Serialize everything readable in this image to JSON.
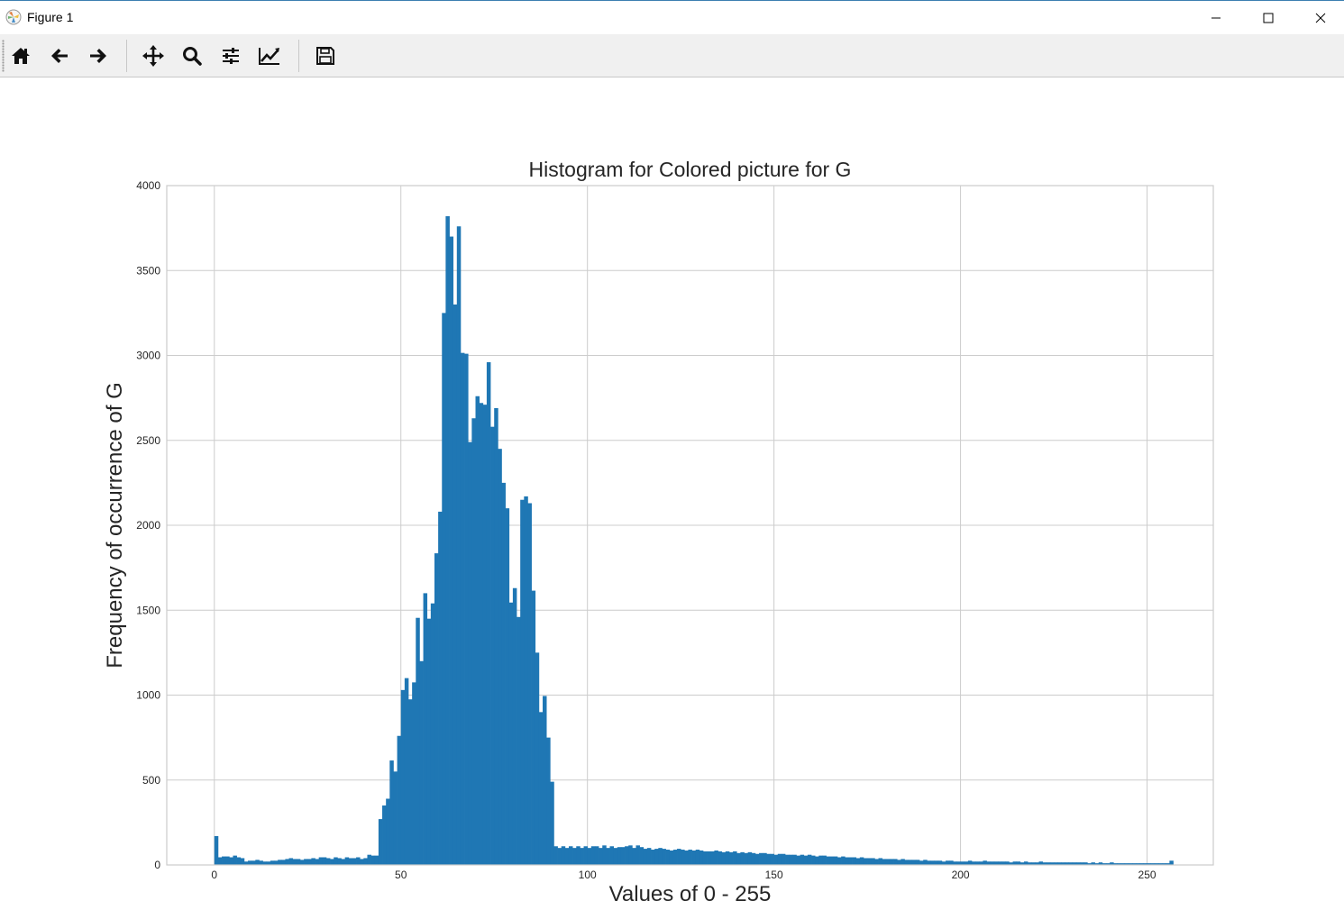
{
  "window": {
    "title": "Figure 1"
  },
  "toolbar": {
    "buttons": [
      {
        "name": "home",
        "icon": "home-icon"
      },
      {
        "name": "back",
        "icon": "arrow-left-icon"
      },
      {
        "name": "forward",
        "icon": "arrow-right-icon"
      },
      {
        "name": "pan",
        "icon": "move-icon"
      },
      {
        "name": "zoom",
        "icon": "magnifier-icon"
      },
      {
        "name": "configure-subplots",
        "icon": "sliders-icon"
      },
      {
        "name": "edit-axis",
        "icon": "chart-line-icon"
      },
      {
        "name": "save",
        "icon": "floppy-disk-icon"
      }
    ]
  },
  "colors": {
    "bar": "#1f77b4",
    "grid": "#cccccc",
    "axes_edge": "#cccccc",
    "titlebar_accent": "#3c7fb1"
  },
  "chart_data": {
    "type": "bar",
    "title": "Histogram for Colored picture for G",
    "xlabel": "Values of 0 - 255",
    "ylabel": "Frequency of occurrence of G",
    "xlim": [
      -12.75,
      267.75
    ],
    "ylim": [
      0,
      4000
    ],
    "xticks": [
      0,
      50,
      100,
      150,
      200,
      250
    ],
    "yticks": [
      0,
      500,
      1000,
      1500,
      2000,
      2500,
      3000,
      3500,
      4000
    ],
    "grid": true,
    "bin_start": 0,
    "bin_width": 1,
    "values": [
      170,
      45,
      50,
      50,
      45,
      55,
      45,
      40,
      20,
      25,
      25,
      30,
      25,
      20,
      20,
      25,
      25,
      30,
      30,
      35,
      40,
      35,
      35,
      30,
      35,
      35,
      40,
      35,
      45,
      45,
      40,
      35,
      45,
      40,
      35,
      45,
      40,
      40,
      45,
      35,
      40,
      60,
      55,
      55,
      270,
      350,
      390,
      615,
      550,
      760,
      1030,
      1100,
      975,
      1075,
      1455,
      1200,
      1600,
      1450,
      1540,
      1835,
      2080,
      3250,
      3820,
      3700,
      3300,
      3760,
      3015,
      3010,
      2490,
      2630,
      2760,
      2720,
      2710,
      2960,
      2580,
      2690,
      2450,
      2250,
      2100,
      1545,
      1630,
      1460,
      2150,
      2170,
      2130,
      1615,
      1250,
      900,
      995,
      750,
      490,
      110,
      100,
      110,
      100,
      110,
      100,
      110,
      100,
      110,
      100,
      110,
      110,
      100,
      115,
      100,
      110,
      100,
      105,
      105,
      110,
      115,
      100,
      115,
      105,
      95,
      100,
      90,
      95,
      100,
      95,
      90,
      85,
      90,
      95,
      90,
      85,
      90,
      85,
      90,
      85,
      80,
      80,
      80,
      85,
      80,
      75,
      80,
      75,
      80,
      70,
      75,
      70,
      75,
      70,
      65,
      70,
      70,
      65,
      65,
      60,
      65,
      65,
      60,
      60,
      60,
      55,
      60,
      55,
      60,
      55,
      50,
      55,
      55,
      50,
      50,
      50,
      45,
      50,
      45,
      45,
      45,
      40,
      45,
      40,
      40,
      40,
      35,
      40,
      35,
      35,
      35,
      35,
      30,
      35,
      30,
      30,
      30,
      30,
      25,
      30,
      25,
      25,
      25,
      25,
      20,
      25,
      25,
      20,
      20,
      20,
      20,
      25,
      20,
      20,
      20,
      25,
      20,
      20,
      20,
      20,
      20,
      20,
      15,
      20,
      20,
      15,
      20,
      15,
      15,
      15,
      20,
      15,
      15,
      15,
      15,
      15,
      15,
      15,
      15,
      15,
      15,
      15,
      15,
      10,
      15,
      10,
      15,
      10,
      10,
      15,
      10,
      10,
      10,
      10,
      10,
      10,
      10,
      10,
      10,
      10,
      10,
      10,
      10,
      10,
      10,
      25
    ]
  }
}
